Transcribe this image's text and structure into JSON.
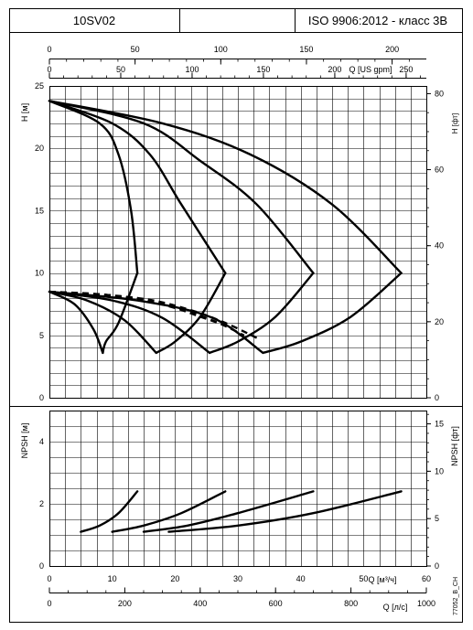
{
  "header": {
    "model": "10SV02",
    "blank": "",
    "standard": "ISO 9906:2012 - класс 3B"
  },
  "code": "77052_B_CH",
  "chart_data": [
    {
      "type": "line",
      "name": "head",
      "ylabel_left": "H [м]",
      "ylabel_right": "H [фт]",
      "xlim": [
        0,
        60
      ],
      "ylim": [
        0,
        25
      ],
      "yticks_left": [
        "0",
        "5",
        "10",
        "15",
        "20",
        "25"
      ],
      "yticks_right": [
        "0",
        "20",
        "40",
        "60",
        "80"
      ],
      "yticks_right_values_m": [
        0,
        6.096,
        12.192,
        18.288,
        24.384
      ],
      "series": [
        {
          "style": "solid",
          "points": [
            [
              0,
              23.8
            ],
            [
              8,
              22.0
            ],
            [
              11,
              19.5
            ],
            [
              13,
              15.0
            ],
            [
              14,
              10.0
            ]
          ]
        },
        {
          "style": "solid",
          "points": [
            [
              0,
              23.8
            ],
            [
              10,
              22.0
            ],
            [
              16,
              19.5
            ],
            [
              21,
              15.5
            ],
            [
              28,
              10.0
            ]
          ]
        },
        {
          "style": "solid",
          "points": [
            [
              0,
              23.8
            ],
            [
              15,
              22.0
            ],
            [
              24,
              19.0
            ],
            [
              33,
              15.5
            ],
            [
              42,
              10.0
            ]
          ]
        },
        {
          "style": "solid",
          "points": [
            [
              0,
              23.8
            ],
            [
              18,
              22.0
            ],
            [
              32,
              19.5
            ],
            [
              45,
              15.5
            ],
            [
              56,
              10.0
            ]
          ]
        },
        {
          "style": "solid",
          "points": [
            [
              14,
              10.0
            ],
            [
              11,
              6.0
            ],
            [
              9,
              4.5
            ],
            [
              8.5,
              3.6
            ]
          ]
        },
        {
          "style": "solid",
          "points": [
            [
              28,
              10.0
            ],
            [
              24,
              6.5
            ],
            [
              20,
              4.5
            ],
            [
              17,
              3.6
            ]
          ]
        },
        {
          "style": "solid",
          "points": [
            [
              42,
              10.0
            ],
            [
              36,
              6.5
            ],
            [
              30,
              4.5
            ],
            [
              25.5,
              3.6
            ]
          ]
        },
        {
          "style": "solid",
          "points": [
            [
              56,
              10.0
            ],
            [
              48,
              6.5
            ],
            [
              40,
              4.5
            ],
            [
              34,
              3.6
            ]
          ]
        },
        {
          "style": "solid",
          "points": [
            [
              0,
              8.5
            ],
            [
              4,
              7.5
            ],
            [
              7,
              5.5
            ],
            [
              8.5,
              3.6
            ]
          ]
        },
        {
          "style": "solid",
          "points": [
            [
              0,
              8.5
            ],
            [
              6,
              7.8
            ],
            [
              12,
              6.2
            ],
            [
              17,
              3.6
            ]
          ]
        },
        {
          "style": "solid",
          "points": [
            [
              0,
              8.5
            ],
            [
              10,
              7.8
            ],
            [
              18,
              6.4
            ],
            [
              25.5,
              3.6
            ]
          ]
        },
        {
          "style": "solid",
          "points": [
            [
              0,
              8.5
            ],
            [
              14,
              7.8
            ],
            [
              26,
              6.4
            ],
            [
              34,
              3.6
            ]
          ]
        },
        {
          "style": "dashed",
          "points": [
            [
              0,
              8.5
            ],
            [
              8,
              8.3
            ],
            [
              14,
              7.9
            ]
          ]
        },
        {
          "style": "dashed",
          "points": [
            [
              0,
              8.5
            ],
            [
              10,
              8.2
            ],
            [
              18,
              7.5
            ],
            [
              24,
              6.5
            ],
            [
              28,
              5.8
            ]
          ]
        },
        {
          "style": "dashed",
          "points": [
            [
              0,
              8.5
            ],
            [
              12,
              8.1
            ],
            [
              20,
              7.2
            ],
            [
              26,
              6.2
            ],
            [
              31,
              5.0
            ]
          ]
        },
        {
          "style": "dashed",
          "points": [
            [
              0,
              8.5
            ],
            [
              14,
              8.0
            ],
            [
              22,
              7.1
            ],
            [
              28,
              6.0
            ],
            [
              33,
              4.8
            ]
          ]
        }
      ]
    },
    {
      "type": "line",
      "name": "npsh",
      "ylabel_left": "NPSH [м]",
      "ylabel_right": "NPSH [фт]",
      "xlabel_bottom_ls": "Q [м³/ч]",
      "xlim": [
        0,
        60
      ],
      "ylim": [
        0,
        5
      ],
      "yticks_left": [
        "0",
        "2",
        "4"
      ],
      "yticks_right": [
        "0",
        "5",
        "10",
        "15"
      ],
      "yticks_right_values_m": [
        0,
        1.524,
        3.048,
        4.572
      ],
      "series": [
        {
          "style": "solid",
          "points": [
            [
              5,
              1.1
            ],
            [
              8,
              1.3
            ],
            [
              11,
              1.7
            ],
            [
              14,
              2.4
            ]
          ]
        },
        {
          "style": "solid",
          "points": [
            [
              10,
              1.1
            ],
            [
              15,
              1.3
            ],
            [
              21,
              1.7
            ],
            [
              28,
              2.4
            ]
          ]
        },
        {
          "style": "solid",
          "points": [
            [
              15,
              1.1
            ],
            [
              22,
              1.3
            ],
            [
              30,
              1.7
            ],
            [
              42,
              2.4
            ]
          ]
        },
        {
          "style": "solid",
          "points": [
            [
              19,
              1.1
            ],
            [
              30,
              1.3
            ],
            [
              42,
              1.7
            ],
            [
              56,
              2.4
            ]
          ]
        }
      ]
    }
  ],
  "axes": {
    "top_usgpm": {
      "label": "Q [US gpm]",
      "ticks": [
        {
          "label": "0",
          "value": 0
        },
        {
          "label": "50",
          "value": 50
        },
        {
          "label": "100",
          "value": 100
        },
        {
          "label": "150",
          "value": 150
        },
        {
          "label": "200",
          "value": 200
        },
        {
          "label": "250",
          "value": 250
        }
      ],
      "to_m3h": 0.2271247
    },
    "top_imp": {
      "ticks": [
        {
          "label": "0",
          "value": 0
        },
        {
          "label": "50",
          "value": 50
        },
        {
          "label": "100",
          "value": 100
        },
        {
          "label": "150",
          "value": 150
        },
        {
          "label": "200",
          "value": 200
        }
      ],
      "to_m3h": 0.2727655
    },
    "bottom_m3h": {
      "label": "Q [м³/ч]",
      "ticks": [
        "0",
        "10",
        "20",
        "30",
        "40",
        "50",
        "60"
      ]
    },
    "bottom_ls": {
      "label": "Q [л/с]",
      "ticks": [
        {
          "label": "0",
          "value": 0
        },
        {
          "label": "200",
          "value": 200
        },
        {
          "label": "400",
          "value": 400
        },
        {
          "label": "600",
          "value": 600
        },
        {
          "label": "800",
          "value": 800
        },
        {
          "label": "1000",
          "value": 1000
        }
      ],
      "to_m3h": 0.06
    }
  }
}
